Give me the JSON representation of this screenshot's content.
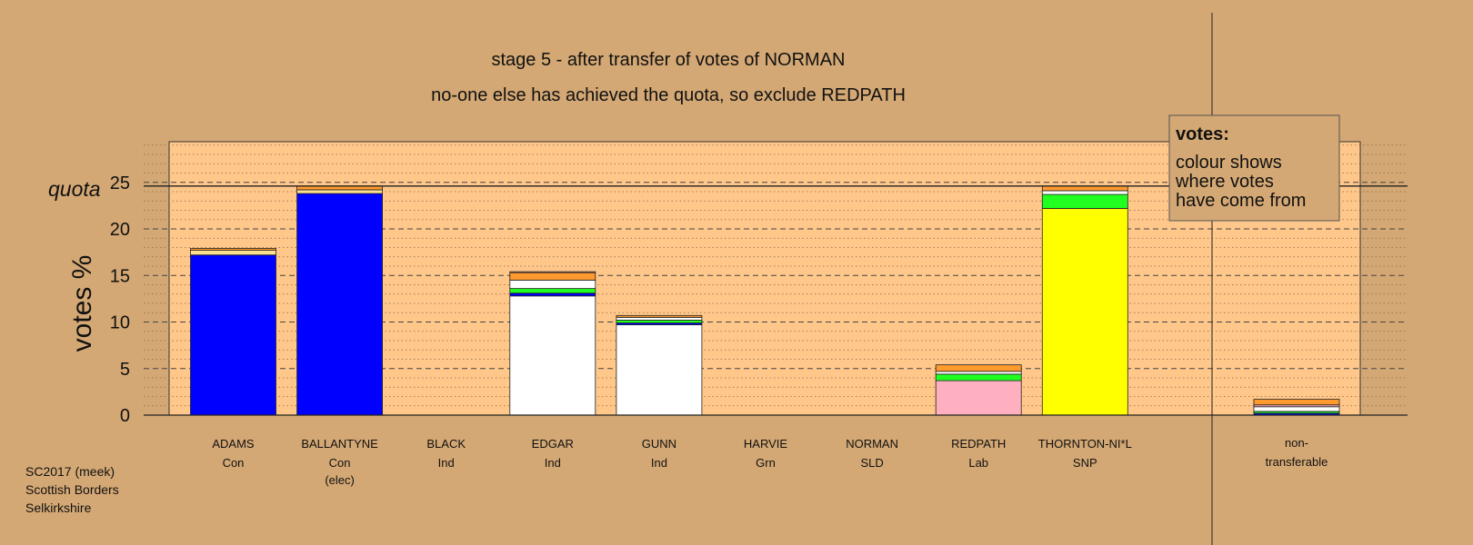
{
  "chart_data": {
    "type": "bar",
    "stacked": true,
    "title": "stage 5 - after transfer of votes of NORMAN",
    "subtitle": "no-one else has achieved the quota, so exclude REDPATH",
    "ylabel": "votes %",
    "ylim": [
      0,
      30
    ],
    "yticks": [
      0,
      5,
      10,
      15,
      20,
      25
    ],
    "grid": "dashed horizontal lines",
    "quota": {
      "label": "quota",
      "value": 24.6
    },
    "legend": {
      "title": "votes:",
      "lines": [
        "colour shows",
        "where votes",
        "have come from"
      ],
      "position": "top-right"
    },
    "colors": {
      "Con": "#0000ff",
      "Ind": "#ffffff",
      "Lab": "#ffb0c0",
      "SNP": "#ffff00",
      "Grn": "#20ff20",
      "SLD": "#ff9a2e",
      "other": "#ffe090"
    },
    "categories": [
      {
        "name": "ADAMS",
        "party": "Con",
        "segments": [
          {
            "from": "Con",
            "value": 17.2
          },
          {
            "from": "other",
            "value": 0.5
          },
          {
            "from": "SLD",
            "value": 0.2
          }
        ]
      },
      {
        "name": "BALLANTYNE",
        "party": "Con",
        "note": "(elec)",
        "segments": [
          {
            "from": "Con",
            "value": 23.8
          },
          {
            "from": "other",
            "value": 0.4
          },
          {
            "from": "SLD",
            "value": 0.4
          }
        ]
      },
      {
        "name": "BLACK",
        "party": "Ind",
        "segments": []
      },
      {
        "name": "EDGAR",
        "party": "Ind",
        "segments": [
          {
            "from": "Ind",
            "value": 12.8
          },
          {
            "from": "Con",
            "value": 0.3
          },
          {
            "from": "Grn",
            "value": 0.5
          },
          {
            "from": "Ind",
            "value": 0.9
          },
          {
            "from": "SLD",
            "value": 0.8
          },
          {
            "from": "Lab",
            "value": 0.1
          }
        ]
      },
      {
        "name": "GUNN",
        "party": "Ind",
        "segments": [
          {
            "from": "Ind",
            "value": 9.7
          },
          {
            "from": "Con",
            "value": 0.2
          },
          {
            "from": "Grn",
            "value": 0.3
          },
          {
            "from": "Ind",
            "value": 0.3
          },
          {
            "from": "SLD",
            "value": 0.2
          }
        ]
      },
      {
        "name": "HARVIE",
        "party": "Grn",
        "segments": []
      },
      {
        "name": "NORMAN",
        "party": "SLD",
        "segments": []
      },
      {
        "name": "REDPATH",
        "party": "Lab",
        "segments": [
          {
            "from": "Lab",
            "value": 3.7
          },
          {
            "from": "Grn",
            "value": 0.7
          },
          {
            "from": "Ind",
            "value": 0.3
          },
          {
            "from": "SLD",
            "value": 0.7
          }
        ]
      },
      {
        "name": "THORNTON-NI*L",
        "party": "SNP",
        "segments": [
          {
            "from": "SNP",
            "value": 22.2
          },
          {
            "from": "Grn",
            "value": 1.5
          },
          {
            "from": "Ind",
            "value": 0.4
          },
          {
            "from": "SLD",
            "value": 0.5
          }
        ]
      }
    ],
    "non_transferable": {
      "label_lines": [
        "non-",
        "transferable"
      ],
      "segments": [
        {
          "from": "Con",
          "value": 0.2
        },
        {
          "from": "Grn",
          "value": 0.2
        },
        {
          "from": "Ind",
          "value": 0.5
        },
        {
          "from": "Lab",
          "value": 0.2
        },
        {
          "from": "SLD",
          "value": 0.6
        }
      ]
    }
  },
  "footer": [
    "SC2017 (meek)",
    "Scottish Borders",
    "Selkirkshire"
  ]
}
